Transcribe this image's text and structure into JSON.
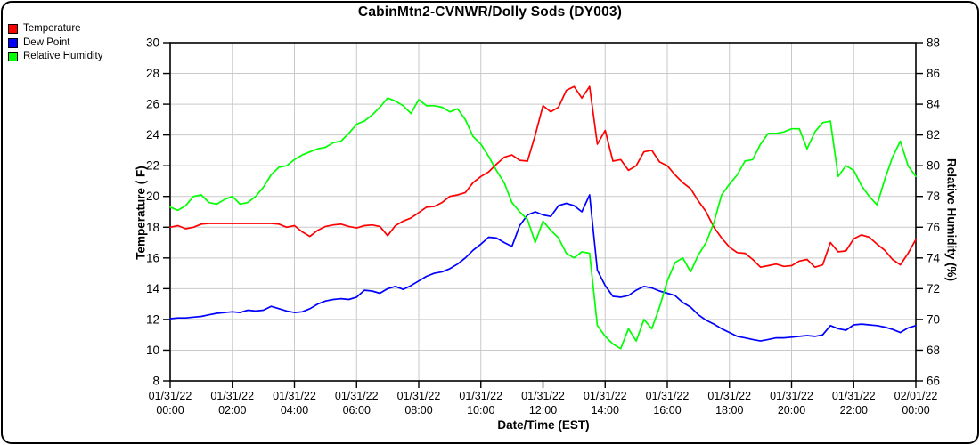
{
  "title": "CabinMtn2-CVNWR/Dolly Sods (DY003)",
  "legend": [
    {
      "label": "Temperature",
      "color": "#ff0000"
    },
    {
      "label": "Dew Point",
      "color": "#0000ff"
    },
    {
      "label": "Relative Humidity",
      "color": "#00ff00"
    }
  ],
  "chart_data": {
    "type": "line",
    "title": "CabinMtn2-CVNWR/Dolly Sods (DY003)",
    "grid": true,
    "legend_position": "top-left",
    "grid_color": "#c9c9c9",
    "axis_color": "#000000",
    "x_axis": {
      "label": "Date/Time (EST)",
      "start_hour": 0,
      "end_hour": 24,
      "tick_step_hours": 2,
      "tick_labels": [
        [
          "01/31/22",
          "00:00"
        ],
        [
          "01/31/22",
          "02:00"
        ],
        [
          "01/31/22",
          "04:00"
        ],
        [
          "01/31/22",
          "06:00"
        ],
        [
          "01/31/22",
          "08:00"
        ],
        [
          "01/31/22",
          "10:00"
        ],
        [
          "01/31/22",
          "12:00"
        ],
        [
          "01/31/22",
          "14:00"
        ],
        [
          "01/31/22",
          "16:00"
        ],
        [
          "01/31/22",
          "18:00"
        ],
        [
          "01/31/22",
          "20:00"
        ],
        [
          "01/31/22",
          "22:00"
        ],
        [
          "02/01/22",
          "00:00"
        ]
      ]
    },
    "y_left": {
      "label": "Temperature ( F)",
      "min": 8,
      "max": 30,
      "step": 2
    },
    "y_right": {
      "label": "Relative Humidity (%)",
      "min": 66,
      "max": 88,
      "step": 2
    },
    "sample_interval_minutes": 15,
    "series": [
      {
        "name": "Temperature",
        "axis": "left",
        "color": "#ff0000",
        "values": [
          18.0,
          18.1,
          17.9,
          18.0,
          18.2,
          18.25,
          18.25,
          18.25,
          18.25,
          18.25,
          18.25,
          18.25,
          18.25,
          18.25,
          18.2,
          18.0,
          18.1,
          17.7,
          17.4,
          17.8,
          18.05,
          18.15,
          18.2,
          18.05,
          17.95,
          18.1,
          18.15,
          18.05,
          17.45,
          18.1,
          18.4,
          18.6,
          18.95,
          19.3,
          19.35,
          19.6,
          20.0,
          20.1,
          20.25,
          20.9,
          21.3,
          21.6,
          22.1,
          22.55,
          22.7,
          22.35,
          22.3,
          24.0,
          25.9,
          25.5,
          25.8,
          26.9,
          27.15,
          26.4,
          27.15,
          23.4,
          24.3,
          22.3,
          22.4,
          21.7,
          22.0,
          22.9,
          23.0,
          22.25,
          22.0,
          21.4,
          20.9,
          20.5,
          19.7,
          19.0,
          18.0,
          17.3,
          16.7,
          16.35,
          16.3,
          15.9,
          15.4,
          15.5,
          15.6,
          15.45,
          15.5,
          15.8,
          15.9,
          15.4,
          15.55,
          17.0,
          16.4,
          16.45,
          17.25,
          17.5,
          17.35,
          16.9,
          16.5,
          15.9,
          15.55,
          16.3,
          17.2
        ]
      },
      {
        "name": "Dew Point",
        "axis": "left",
        "color": "#0000ff",
        "values": [
          12.05,
          12.1,
          12.1,
          12.15,
          12.2,
          12.3,
          12.4,
          12.45,
          12.5,
          12.45,
          12.6,
          12.55,
          12.6,
          12.85,
          12.7,
          12.55,
          12.45,
          12.5,
          12.7,
          13.0,
          13.2,
          13.3,
          13.35,
          13.3,
          13.45,
          13.9,
          13.85,
          13.7,
          14.0,
          14.15,
          13.95,
          14.2,
          14.5,
          14.8,
          15.0,
          15.1,
          15.3,
          15.6,
          16.0,
          16.5,
          16.9,
          17.35,
          17.3,
          17.0,
          16.75,
          18.1,
          18.8,
          19.0,
          18.8,
          18.7,
          19.4,
          19.55,
          19.4,
          19.0,
          20.1,
          15.2,
          14.2,
          13.5,
          13.45,
          13.55,
          13.9,
          14.15,
          14.05,
          13.85,
          13.7,
          13.55,
          13.1,
          12.8,
          12.3,
          11.95,
          11.7,
          11.4,
          11.15,
          10.9,
          10.8,
          10.7,
          10.6,
          10.7,
          10.8,
          10.8,
          10.85,
          10.9,
          10.95,
          10.9,
          11.0,
          11.6,
          11.4,
          11.3,
          11.65,
          11.7,
          11.65,
          11.6,
          11.5,
          11.35,
          11.15,
          11.45,
          11.6
        ]
      },
      {
        "name": "Relative Humidity",
        "axis": "right",
        "color": "#00ff00",
        "values": [
          77.3,
          77.1,
          77.4,
          78.0,
          78.1,
          77.6,
          77.5,
          77.8,
          78.0,
          77.5,
          77.6,
          78.0,
          78.6,
          79.4,
          79.9,
          80.0,
          80.4,
          80.7,
          80.9,
          81.1,
          81.2,
          81.5,
          81.6,
          82.1,
          82.7,
          82.9,
          83.3,
          83.8,
          84.4,
          84.2,
          83.9,
          83.4,
          84.3,
          83.9,
          83.9,
          83.8,
          83.5,
          83.7,
          83.0,
          81.9,
          81.4,
          80.6,
          79.7,
          78.9,
          77.6,
          77.0,
          76.5,
          75.0,
          76.4,
          75.8,
          75.3,
          74.3,
          74.0,
          74.4,
          74.3,
          69.6,
          68.9,
          68.4,
          68.1,
          69.4,
          68.6,
          70.0,
          69.4,
          70.8,
          72.5,
          73.7,
          74.0,
          73.1,
          74.2,
          75.0,
          76.3,
          78.1,
          78.8,
          79.4,
          80.3,
          80.4,
          81.4,
          82.1,
          82.1,
          82.2,
          82.4,
          82.4,
          81.1,
          82.2,
          82.8,
          82.9,
          79.3,
          80.0,
          79.7,
          78.7,
          78.0,
          77.45,
          79.1,
          80.55,
          81.6,
          80.0,
          79.3
        ]
      }
    ]
  }
}
